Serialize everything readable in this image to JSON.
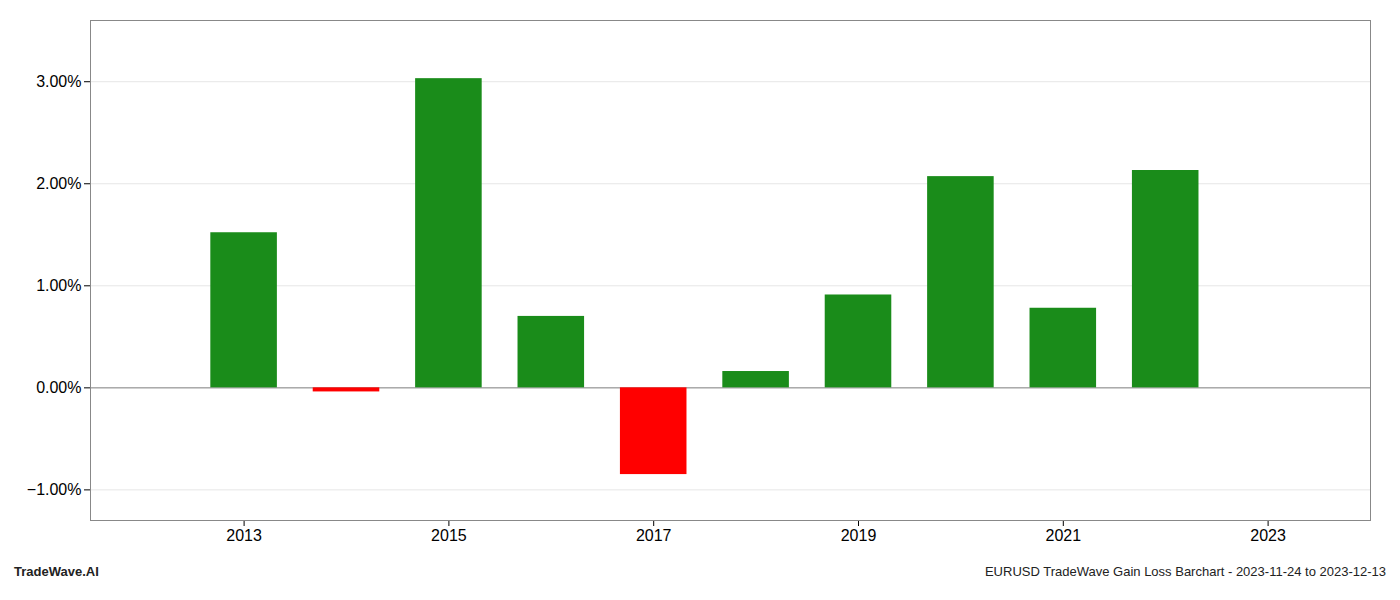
{
  "chart_data": {
    "type": "bar",
    "x": [
      2013,
      2014,
      2015,
      2016,
      2017,
      2018,
      2019,
      2020,
      2021,
      2022
    ],
    "values": [
      0.0152,
      -0.0004,
      0.0303,
      0.007,
      -0.0085,
      0.0016,
      0.0091,
      0.0207,
      0.0078,
      0.0213
    ],
    "colors": [
      "#1a8c1a",
      "#ff0000",
      "#1a8c1a",
      "#1a8c1a",
      "#ff0000",
      "#1a8c1a",
      "#1a8c1a",
      "#1a8c1a",
      "#1a8c1a",
      "#1a8c1a"
    ],
    "xlim": [
      2011.5,
      2024.0
    ],
    "xticks": [
      2013,
      2015,
      2017,
      2019,
      2021,
      2023
    ],
    "ylim": [
      -0.013,
      0.036
    ],
    "yticks": [
      {
        "value": -0.01,
        "label": "−1.00%"
      },
      {
        "value": 0.0,
        "label": "0.00%"
      },
      {
        "value": 0.01,
        "label": "1.00%"
      },
      {
        "value": 0.02,
        "label": "2.00%"
      },
      {
        "value": 0.03,
        "label": "3.00%"
      }
    ],
    "grid": true,
    "annotations": [
      "TradeWave.AI",
      "EURUSD TradeWave Gain Loss Barchart - 2023-11-24 to 2023-12-13"
    ]
  }
}
